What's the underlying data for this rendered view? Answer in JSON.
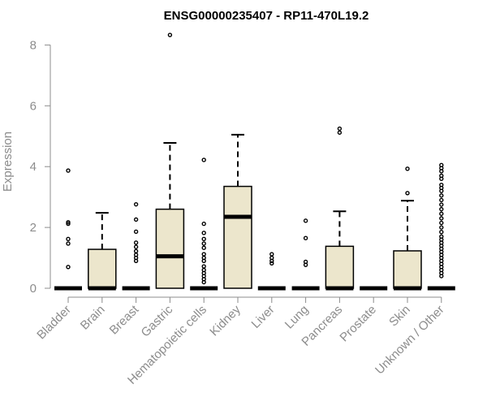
{
  "chart_data": {
    "type": "boxplot",
    "title": "ENSG00000235407 - RP11-470L19.2",
    "xlabel": "",
    "ylabel": "Expression",
    "ylim": [
      0,
      8
    ],
    "yticks": [
      0,
      2,
      4,
      6,
      8
    ],
    "grid": false,
    "legend": "none",
    "box_fill": "#ece6cc",
    "categories": [
      "Bladder",
      "Brain",
      "Breast",
      "Gastric",
      "Hematopoietic cells",
      "Kidney",
      "Liver",
      "Lung",
      "Pancreas",
      "Prostate",
      "Skin",
      "Unknown / Other"
    ],
    "boxes": [
      {
        "category": "Bladder",
        "q1": 0,
        "median": 0,
        "q3": 0,
        "whisker_low": 0,
        "whisker_high": 0,
        "outliers": [
          3.87,
          2.17,
          2.12,
          1.62,
          1.47,
          0.7
        ]
      },
      {
        "category": "Brain",
        "q1": 0,
        "median": 0,
        "q3": 1.28,
        "whisker_low": 0,
        "whisker_high": 2.48,
        "outliers": []
      },
      {
        "category": "Breast",
        "q1": 0,
        "median": 0,
        "q3": 0,
        "whisker_low": 0,
        "whisker_high": 0,
        "outliers": [
          2.76,
          2.26,
          1.86,
          1.5,
          1.36,
          1.22,
          1.1,
          1.0,
          0.9
        ]
      },
      {
        "category": "Gastric",
        "q1": 0,
        "median": 1.05,
        "q3": 2.6,
        "whisker_low": 0,
        "whisker_high": 4.78,
        "outliers": [
          8.33
        ]
      },
      {
        "category": "Hematopoietic cells",
        "q1": 0,
        "median": 0,
        "q3": 0,
        "whisker_low": 0,
        "whisker_high": 0,
        "outliers": [
          4.22,
          2.12,
          1.82,
          1.62,
          1.47,
          1.33,
          1.12,
          1.0,
          0.9,
          0.72,
          0.6,
          0.5,
          0.4,
          0.3,
          0.2
        ]
      },
      {
        "category": "Kidney",
        "q1": 0,
        "median": 2.35,
        "q3": 3.35,
        "whisker_low": 0,
        "whisker_high": 5.05,
        "outliers": []
      },
      {
        "category": "Liver",
        "q1": 0,
        "median": 0,
        "q3": 0,
        "whisker_low": 0,
        "whisker_high": 0,
        "outliers": [
          1.12,
          1.0,
          0.9,
          0.82
        ]
      },
      {
        "category": "Lung",
        "q1": 0,
        "median": 0,
        "q3": 0,
        "whisker_low": 0,
        "whisker_high": 0,
        "outliers": [
          2.22,
          1.65,
          0.87,
          0.77
        ]
      },
      {
        "category": "Pancreas",
        "q1": 0,
        "median": 0,
        "q3": 1.38,
        "whisker_low": 0,
        "whisker_high": 2.53,
        "outliers": [
          5.25,
          5.12
        ]
      },
      {
        "category": "Prostate",
        "q1": 0,
        "median": 0,
        "q3": 0,
        "whisker_low": 0,
        "whisker_high": 0,
        "outliers": []
      },
      {
        "category": "Skin",
        "q1": 0,
        "median": 0,
        "q3": 1.23,
        "whisker_low": 0,
        "whisker_high": 2.88,
        "outliers": [
          3.93,
          3.13
        ]
      },
      {
        "category": "Unknown / Other",
        "q1": 0,
        "median": 0,
        "q3": 0,
        "whisker_low": 0,
        "whisker_high": 0,
        "outliers": [
          4.05,
          3.95,
          3.85,
          3.7,
          3.6,
          3.4,
          3.3,
          3.2,
          3.05,
          2.9,
          2.75,
          2.6,
          2.45,
          2.3,
          2.15,
          2.0,
          1.85,
          1.7,
          1.6,
          1.5,
          1.4,
          1.3,
          1.2,
          1.1,
          1.0,
          0.9,
          0.8,
          0.7,
          0.6,
          0.5,
          0.4
        ]
      }
    ]
  }
}
